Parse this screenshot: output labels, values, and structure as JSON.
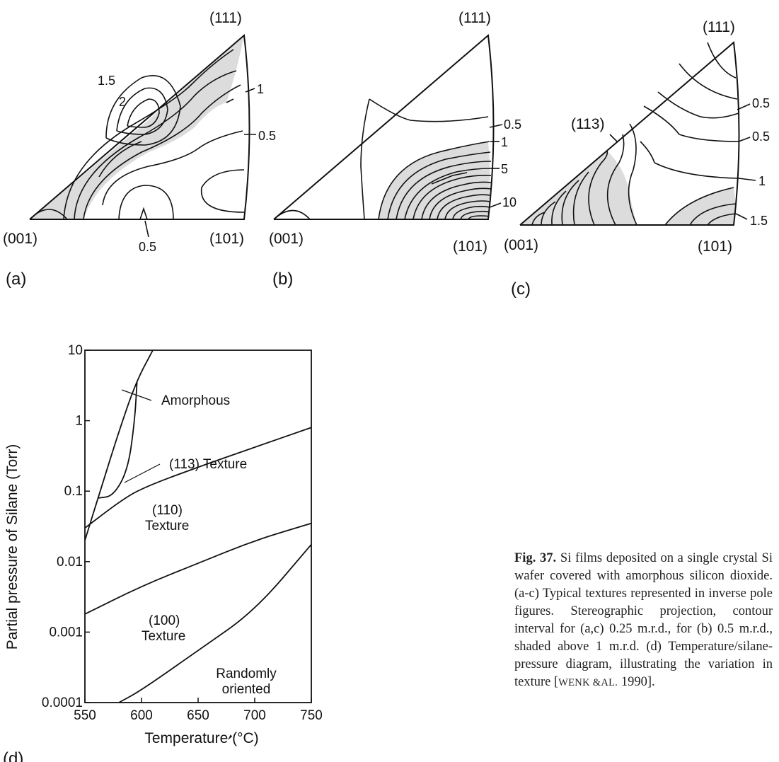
{
  "panels": {
    "a": {
      "label": "(a)",
      "corners": {
        "top": "(111)",
        "left": "(001)",
        "right": "(101)"
      },
      "contour_labels": [
        "1.5",
        "2",
        "1",
        "0.5",
        "0.5"
      ]
    },
    "b": {
      "label": "(b)",
      "corners": {
        "top": "(111)",
        "left": "(001)",
        "right": "(101)"
      },
      "contour_labels": [
        "0.5",
        "1",
        "5",
        "10"
      ]
    },
    "c": {
      "label": "(c)",
      "corners": {
        "top": "(111)",
        "left": "(001)",
        "right": "(101)"
      },
      "extra_label": "(113)",
      "contour_labels": [
        "0.5",
        "0.5",
        "1",
        "1.5"
      ]
    },
    "d": {
      "label": "(d)"
    }
  },
  "chart_data": {
    "type": "line",
    "xlabel": "Temperature (°C)",
    "ylabel": "Partial pressure of Silane (Torr)",
    "xlim": [
      550,
      750
    ],
    "ylim": [
      0.0001,
      10
    ],
    "yscale": "log",
    "x_ticks": [
      "550",
      "600",
      "650",
      "700",
      "750"
    ],
    "y_ticks": [
      "0.0001",
      "0.001",
      "0.01",
      "0.1",
      "1",
      "10"
    ],
    "series": [
      {
        "values": [
          [
            550,
            0.02
          ],
          [
            565,
            0.12
          ],
          [
            580,
            0.7
          ],
          [
            595,
            3.5
          ],
          [
            610,
            10
          ]
        ]
      },
      {
        "values": [
          [
            562,
            0.08
          ],
          [
            575,
            0.085
          ],
          [
            588,
            0.2
          ],
          [
            594,
            1.0
          ],
          [
            596,
            3.5
          ]
        ]
      },
      {
        "values": [
          [
            550,
            0.03
          ],
          [
            580,
            0.07
          ],
          [
            600,
            0.11
          ],
          [
            650,
            0.22
          ],
          [
            700,
            0.42
          ],
          [
            750,
            0.8
          ]
        ]
      },
      {
        "values": [
          [
            550,
            0.0018
          ],
          [
            600,
            0.0045
          ],
          [
            650,
            0.0095
          ],
          [
            700,
            0.02
          ],
          [
            750,
            0.035
          ]
        ]
      },
      {
        "values": [
          [
            580,
            0.0001
          ],
          [
            600,
            0.00015
          ],
          [
            650,
            0.00055
          ],
          [
            700,
            0.002
          ],
          [
            750,
            0.0175
          ]
        ]
      }
    ],
    "regions": [
      "Amorphous",
      "(113) Texture",
      "(110)\nTexture",
      "(100)\nTexture",
      "Randomly\noriented"
    ]
  },
  "caption": {
    "fig_label": "Fig. 37.",
    "text_1": "Si films deposited on a single crystal Si wafer covered with amorphous silicon dioxide. (a-c) Typical textures represented in inverse pole figures. Stereographic projection, contour interval for (a,c) 0.25 m.r.d., for (b) 0.5 m.r.d., shaded above 1 m.r.d. (d) Temperature/silane-pressure diagram, illustrating the variation in texture [",
    "ref_author": "WENK &AL.",
    "text_2": " 1990]."
  }
}
